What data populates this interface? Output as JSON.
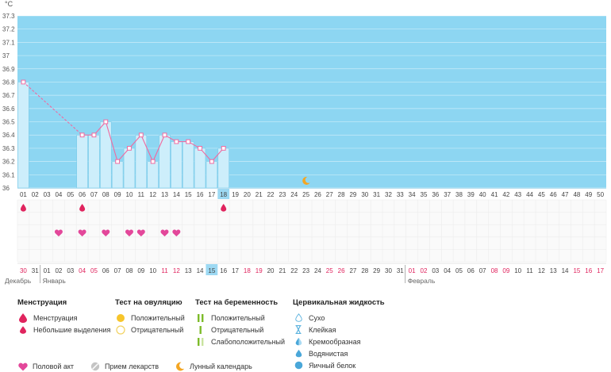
{
  "chart_data": {
    "type": "bar",
    "unit": "°C",
    "y_ticks": [
      "37.3",
      "37.2",
      "37.1",
      "37",
      "36.9",
      "36.8",
      "36.7",
      "36.6",
      "36.5",
      "36.4",
      "36.3",
      "36.2",
      "36.1",
      "36"
    ],
    "ylim": [
      36.0,
      37.3
    ],
    "cycle_days": [
      "01",
      "02",
      "03",
      "04",
      "05",
      "06",
      "07",
      "08",
      "09",
      "10",
      "11",
      "12",
      "13",
      "14",
      "15",
      "16",
      "17",
      "18",
      "19",
      "20",
      "21",
      "22",
      "23",
      "24",
      "25",
      "26",
      "27",
      "28",
      "29",
      "30",
      "31",
      "32",
      "33",
      "34",
      "35",
      "36",
      "37",
      "38",
      "39",
      "40",
      "41",
      "42",
      "43",
      "44",
      "45",
      "46",
      "47",
      "48",
      "49",
      "50"
    ],
    "current_day_index": 17,
    "temperatures": [
      36.8,
      null,
      null,
      null,
      null,
      36.4,
      36.4,
      36.5,
      36.2,
      36.3,
      36.4,
      36.2,
      36.4,
      36.35,
      36.35,
      36.3,
      36.2,
      36.3
    ],
    "menstruation_days": [
      1,
      6,
      18
    ],
    "intercourse_days": [
      4,
      6,
      8,
      10,
      11,
      13,
      14
    ],
    "moon_day": 25,
    "calendar_days": [
      "30",
      "31",
      "01",
      "02",
      "03",
      "04",
      "05",
      "06",
      "07",
      "08",
      "09",
      "10",
      "11",
      "12",
      "13",
      "14",
      "15",
      "16",
      "17",
      "18",
      "19",
      "20",
      "21",
      "22",
      "23",
      "24",
      "25",
      "26",
      "27",
      "28",
      "29",
      "30",
      "31",
      "01",
      "02",
      "03",
      "04",
      "05",
      "06",
      "07",
      "08",
      "09",
      "10",
      "11",
      "12",
      "13",
      "14",
      "15",
      "16",
      "17"
    ],
    "weekend_indices": [
      0,
      5,
      6,
      12,
      13,
      19,
      20,
      26,
      27,
      33,
      34,
      40,
      41,
      47,
      48,
      49
    ],
    "current_calendar_index": 16,
    "month_labels": [
      {
        "label": "Декабрь",
        "index": 0
      },
      {
        "label": "Январь",
        "index": 2
      },
      {
        "label": "Февраль",
        "index": 33
      }
    ],
    "colors": {
      "sky": "#8dd6f2",
      "bar": "#cdeefb",
      "bar_stroke": "#7ccbe9",
      "line": "#f06aa0",
      "weekend": "#e0245e",
      "highlight": "#9dd9f3"
    }
  },
  "legend": {
    "menstruation": {
      "title": "Менструация",
      "items": [
        "Менструация",
        "Небольшие выделения"
      ]
    },
    "ovulation_test": {
      "title": "Тест на овуляцию",
      "items": [
        "Положительный",
        "Отрицательный"
      ]
    },
    "pregnancy_test": {
      "title": "Тест на беременность",
      "items": [
        "Положительный",
        "Отрицательный",
        "Слабоположительный"
      ]
    },
    "cervical_fluid": {
      "title": "Цервикальная жидкость",
      "items": [
        "Сухо",
        "Клейкая",
        "Кремообразная",
        "Водянистая",
        "Яичный белок"
      ]
    },
    "bottom": {
      "intercourse": "Половой акт",
      "medication": "Прием лекарств",
      "lunar": "Лунный календарь"
    }
  }
}
